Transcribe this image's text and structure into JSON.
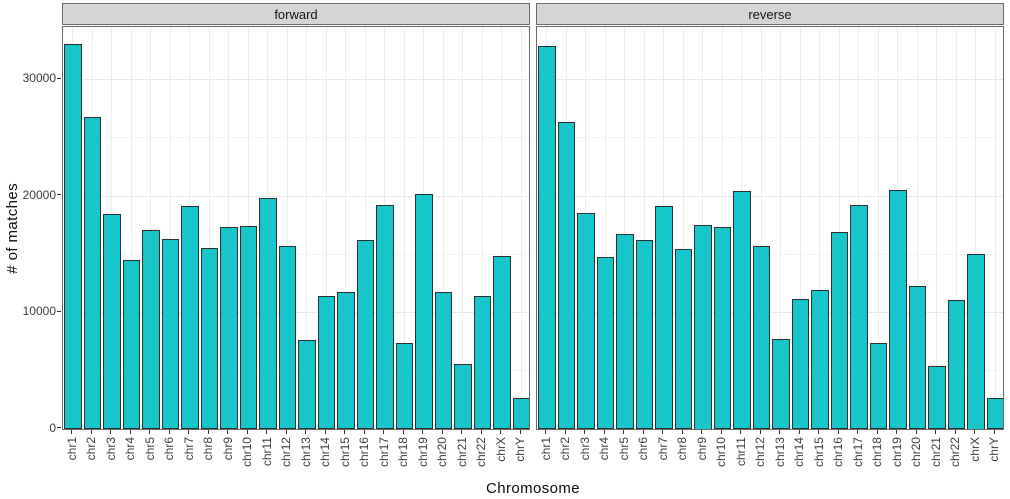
{
  "figure": {
    "x_axis_title": "Chromosome",
    "y_axis_title": "# of matches"
  },
  "chart_data": {
    "type": "bar",
    "title": "",
    "xlabel": "Chromosome",
    "ylabel": "# of matches",
    "legend": "none",
    "grid": true,
    "categories": [
      "chr1",
      "chr2",
      "chr3",
      "chr4",
      "chr5",
      "chr6",
      "chr7",
      "chr8",
      "chr9",
      "chr10",
      "chr11",
      "chr12",
      "chr13",
      "chr14",
      "chr15",
      "chr16",
      "chr17",
      "chr18",
      "chr19",
      "chr20",
      "chr21",
      "chr22",
      "chrX",
      "chrY"
    ],
    "facets": [
      {
        "label": "forward",
        "values": [
          33000,
          26700,
          18400,
          14500,
          17000,
          16300,
          19100,
          15500,
          17300,
          17400,
          19800,
          15700,
          7600,
          11400,
          11700,
          16200,
          19200,
          7300,
          20100,
          11700,
          5500,
          11400,
          14800,
          2600
        ]
      },
      {
        "label": "reverse",
        "values": [
          32800,
          26300,
          18500,
          14700,
          16700,
          16200,
          19100,
          15400,
          17500,
          17300,
          20400,
          15700,
          7700,
          11100,
          11900,
          16900,
          19200,
          7300,
          20500,
          12200,
          5400,
          11000,
          15000,
          2600
        ]
      }
    ],
    "y_ticks": [
      0,
      10000,
      20000,
      30000
    ],
    "y_minor_ticks": [
      5000,
      15000,
      25000
    ],
    "ylim": [
      0,
      34500
    ],
    "colors": {
      "bar_fill": "#17c6cb",
      "bar_border": "#303030",
      "strip_bg": "#d5d5d5",
      "strip_border": "#6a6a6a",
      "panel_border": "#6a6a6a",
      "grid_major": "#e9e9e9",
      "grid_minor": "#f4f4f4",
      "axis_text": "#3c3c3c",
      "title_text": "#0d0d0d"
    }
  }
}
